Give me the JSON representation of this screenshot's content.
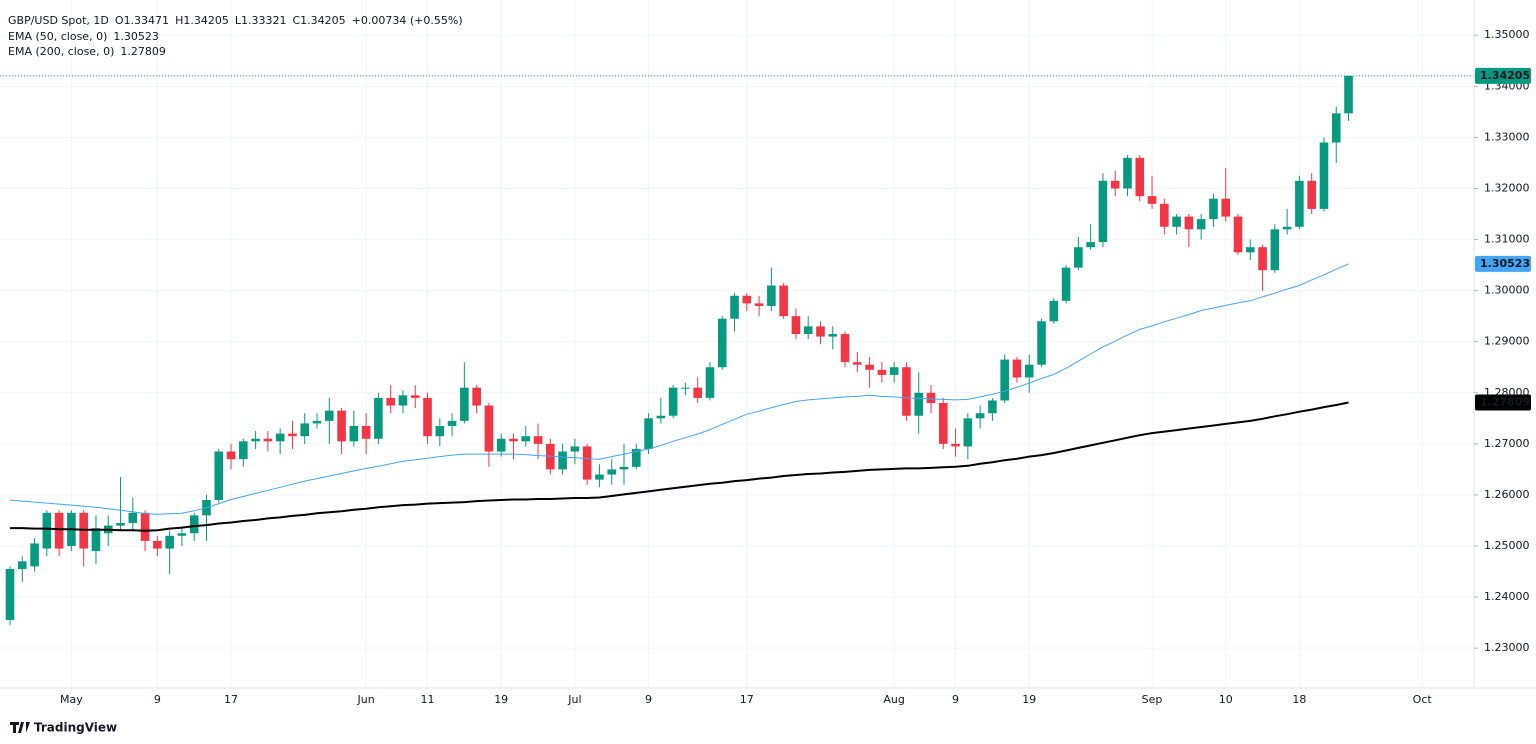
{
  "chart_data": {
    "type": "candlestick",
    "title": "GBP/USD Spot, 1D",
    "ohlc_prefixes": [
      "O",
      "H",
      "L",
      "C"
    ],
    "change_label": "+0.00734 (+0.55%)",
    "brand": "TradingView",
    "up_color": "#089981",
    "down_color": "#f23645",
    "grid": true,
    "categories": [
      null,
      null,
      null,
      null,
      null,
      "May",
      null,
      null,
      null,
      null,
      null,
      null,
      "9",
      null,
      null,
      null,
      null,
      null,
      "17",
      null,
      null,
      null,
      null,
      null,
      null,
      null,
      null,
      null,
      null,
      "Jun",
      null,
      null,
      null,
      null,
      "11",
      null,
      null,
      null,
      null,
      null,
      "19",
      null,
      null,
      null,
      null,
      null,
      "Jul",
      null,
      null,
      null,
      null,
      null,
      "9",
      null,
      null,
      null,
      null,
      null,
      null,
      null,
      "17",
      null,
      null,
      null,
      null,
      null,
      null,
      null,
      null,
      null,
      null,
      null,
      "Aug",
      null,
      null,
      null,
      null,
      "9",
      null,
      null,
      null,
      null,
      null,
      "19",
      null,
      null,
      null,
      null,
      null,
      null,
      null,
      null,
      null,
      "Sep",
      null,
      null,
      null,
      null,
      null,
      "10",
      null,
      null,
      null,
      null,
      null,
      "18",
      null,
      null,
      null,
      null
    ],
    "future_categories": [
      null,
      null,
      null,
      null,
      null,
      "Oct"
    ],
    "open": [
      1.2355,
      1.2455,
      1.246,
      1.2495,
      1.2565,
      1.25,
      1.2565,
      1.249,
      1.2525,
      1.254,
      1.2545,
      1.2565,
      1.251,
      1.2495,
      1.252,
      1.2525,
      1.256,
      1.259,
      1.2685,
      1.267,
      1.2705,
      1.271,
      1.2705,
      1.272,
      1.2715,
      1.274,
      1.2745,
      1.2765,
      1.2705,
      1.2735,
      1.271,
      1.279,
      1.2775,
      1.2795,
      1.279,
      1.2715,
      1.2735,
      1.2745,
      1.281,
      1.2775,
      1.2685,
      1.271,
      1.2705,
      1.2715,
      1.27,
      1.265,
      1.2685,
      1.2695,
      1.263,
      1.264,
      1.265,
      1.2655,
      1.269,
      1.275,
      1.2755,
      1.281,
      1.281,
      1.279,
      1.285,
      1.2945,
      1.299,
      1.2975,
      1.297,
      1.301,
      1.295,
      1.2915,
      1.293,
      1.291,
      1.2915,
      1.286,
      1.2855,
      1.2845,
      1.2835,
      1.285,
      1.2755,
      1.28,
      1.278,
      1.27,
      1.2695,
      1.275,
      1.276,
      1.2785,
      1.2865,
      1.283,
      1.2855,
      1.294,
      1.298,
      1.3045,
      1.3085,
      1.3095,
      1.3215,
      1.32,
      1.326,
      1.3185,
      1.317,
      1.3125,
      1.3145,
      1.312,
      1.314,
      1.318,
      1.3145,
      1.3075,
      1.3085,
      1.304,
      1.312,
      1.3125,
      1.3215,
      1.316,
      1.329,
      1.33471
    ],
    "high": [
      1.246,
      1.248,
      1.2515,
      1.257,
      1.257,
      1.257,
      1.257,
      1.256,
      1.256,
      1.2635,
      1.2595,
      1.257,
      1.252,
      1.253,
      1.2535,
      1.2565,
      1.26,
      1.269,
      1.27,
      1.271,
      1.2725,
      1.2725,
      1.273,
      1.2745,
      1.276,
      1.276,
      1.279,
      1.277,
      1.2765,
      1.276,
      1.28,
      1.2815,
      1.2805,
      1.2815,
      1.28,
      1.275,
      1.276,
      1.286,
      1.2815,
      1.278,
      1.272,
      1.272,
      1.2735,
      1.274,
      1.271,
      1.27,
      1.271,
      1.27,
      1.266,
      1.267,
      1.27,
      1.27,
      1.276,
      1.279,
      1.2815,
      1.282,
      1.283,
      1.286,
      1.295,
      1.2995,
      1.2995,
      1.299,
      1.3045,
      1.3015,
      1.2965,
      1.295,
      1.294,
      1.293,
      1.292,
      1.288,
      1.287,
      1.286,
      1.286,
      1.286,
      1.284,
      1.2815,
      1.279,
      1.273,
      1.276,
      1.2775,
      1.279,
      1.2875,
      1.287,
      1.2875,
      1.2945,
      1.2985,
      1.305,
      1.3105,
      1.313,
      1.323,
      1.3235,
      1.3265,
      1.3265,
      1.3225,
      1.318,
      1.315,
      1.315,
      1.315,
      1.319,
      1.324,
      1.315,
      1.31,
      1.309,
      1.313,
      1.316,
      1.3225,
      1.323,
      1.33,
      1.336,
      1.34205
    ],
    "low": [
      1.2345,
      1.243,
      1.245,
      1.248,
      1.248,
      1.249,
      1.246,
      1.2465,
      1.25,
      1.253,
      1.253,
      1.249,
      1.248,
      1.2445,
      1.25,
      1.251,
      1.251,
      1.2585,
      1.265,
      1.2655,
      1.269,
      1.2685,
      1.268,
      1.269,
      1.27,
      1.273,
      1.27,
      1.268,
      1.2695,
      1.268,
      1.27,
      1.276,
      1.276,
      1.277,
      1.27,
      1.2695,
      1.2715,
      1.274,
      1.276,
      1.2655,
      1.2675,
      1.267,
      1.2695,
      1.267,
      1.264,
      1.264,
      1.266,
      1.262,
      1.2615,
      1.262,
      1.262,
      1.265,
      1.268,
      1.274,
      1.275,
      1.2795,
      1.278,
      1.2785,
      1.2845,
      1.292,
      1.296,
      1.295,
      1.296,
      1.2945,
      1.2905,
      1.2905,
      1.2895,
      1.2885,
      1.285,
      1.284,
      1.281,
      1.282,
      1.282,
      1.2745,
      1.272,
      1.276,
      1.269,
      1.2675,
      1.267,
      1.273,
      1.2745,
      1.278,
      1.282,
      1.28,
      1.285,
      1.2935,
      1.2975,
      1.304,
      1.308,
      1.3085,
      1.3185,
      1.3185,
      1.3175,
      1.316,
      1.311,
      1.311,
      1.3085,
      1.31,
      1.3125,
      1.3135,
      1.307,
      1.306,
      1.3,
      1.3035,
      1.311,
      1.312,
      1.315,
      1.3155,
      1.325,
      1.33321
    ],
    "close": [
      1.2455,
      1.247,
      1.2505,
      1.2565,
      1.2495,
      1.2565,
      1.2495,
      1.2535,
      1.254,
      1.2545,
      1.2565,
      1.251,
      1.2495,
      1.252,
      1.2525,
      1.256,
      1.259,
      1.2685,
      1.267,
      1.2705,
      1.271,
      1.2705,
      1.272,
      1.2715,
      1.274,
      1.2745,
      1.2765,
      1.2705,
      1.2735,
      1.271,
      1.279,
      1.2775,
      1.2795,
      1.279,
      1.2715,
      1.2735,
      1.2745,
      1.281,
      1.2775,
      1.2685,
      1.271,
      1.2705,
      1.2715,
      1.27,
      1.265,
      1.2685,
      1.2695,
      1.263,
      1.264,
      1.265,
      1.2655,
      1.269,
      1.275,
      1.2755,
      1.281,
      1.281,
      1.279,
      1.285,
      1.2945,
      1.299,
      1.2975,
      1.297,
      1.301,
      1.295,
      1.2915,
      1.293,
      1.291,
      1.2915,
      1.286,
      1.2855,
      1.2845,
      1.2835,
      1.285,
      1.2755,
      1.28,
      1.278,
      1.27,
      1.2695,
      1.275,
      1.276,
      1.2785,
      1.2865,
      1.283,
      1.2855,
      1.294,
      1.298,
      1.3045,
      1.3085,
      1.3095,
      1.3215,
      1.32,
      1.326,
      1.3185,
      1.317,
      1.3125,
      1.3145,
      1.312,
      1.314,
      1.318,
      1.3145,
      1.3075,
      1.3085,
      1.304,
      1.312,
      1.3125,
      1.3215,
      1.316,
      1.329,
      1.33471,
      1.34205
    ],
    "series": [
      {
        "name": "EMA (50, close, 0)",
        "color": "#42a5f5",
        "tag_text_color": "#ffffff",
        "values": [
          1.259,
          1.2588,
          1.2586,
          1.2584,
          1.2582,
          1.258,
          1.2578,
          1.2576,
          1.2573,
          1.257,
          1.2567,
          1.2563,
          1.2562,
          1.2563,
          1.2564,
          1.2569,
          1.2575,
          1.2583,
          1.2591,
          1.2597,
          1.2603,
          1.2609,
          1.2615,
          1.2621,
          1.2627,
          1.2632,
          1.2637,
          1.2642,
          1.2647,
          1.2652,
          1.2656,
          1.2661,
          1.2666,
          1.2669,
          1.2672,
          1.2675,
          1.2678,
          1.268,
          1.268,
          1.268,
          1.268,
          1.268,
          1.2679,
          1.2677,
          1.2676,
          1.2674,
          1.2673,
          1.2671,
          1.267,
          1.2675,
          1.268,
          1.2685,
          1.269,
          1.2697,
          1.2705,
          1.2712,
          1.2719,
          1.2728,
          1.2738,
          1.2748,
          1.2758,
          1.2764,
          1.2771,
          1.2777,
          1.2783,
          1.2786,
          1.2788,
          1.279,
          1.2792,
          1.2793,
          1.2795,
          1.2793,
          1.2792,
          1.279,
          1.2789,
          1.2788,
          1.2787,
          1.2786,
          1.2787,
          1.2792,
          1.2797,
          1.2803,
          1.2811,
          1.2819,
          1.2828,
          1.2836,
          1.2848,
          1.2862,
          1.2876,
          1.289,
          1.2901,
          1.2913,
          1.2924,
          1.2931,
          1.2939,
          1.2946,
          1.2953,
          1.2961,
          1.2966,
          1.2971,
          1.2976,
          1.298,
          1.2988,
          1.2995,
          1.3003,
          1.301,
          1.3021,
          1.3031,
          1.3042,
          1.30523
        ]
      },
      {
        "name": "EMA (200, close, 0)",
        "color": "#000000",
        "tag_text_color": "#ffffff",
        "values": [
          1.2535,
          1.2535,
          1.2534,
          1.2534,
          1.2533,
          1.2533,
          1.2532,
          1.2532,
          1.2532,
          1.2531,
          1.2531,
          1.253,
          1.2531,
          1.2534,
          1.2536,
          1.2539,
          1.2541,
          1.2544,
          1.2546,
          1.2549,
          1.2551,
          1.2554,
          1.2556,
          1.2559,
          1.2561,
          1.2564,
          1.2566,
          1.2568,
          1.2571,
          1.2573,
          1.2576,
          1.2578,
          1.258,
          1.2581,
          1.2583,
          1.2584,
          1.2585,
          1.2586,
          1.2588,
          1.2589,
          1.259,
          1.2591,
          1.2591,
          1.2592,
          1.2592,
          1.2593,
          1.2594,
          1.2594,
          1.2595,
          1.2598,
          1.2601,
          1.2604,
          1.2607,
          1.261,
          1.2613,
          1.2616,
          1.2619,
          1.2622,
          1.2624,
          1.2627,
          1.2629,
          1.2632,
          1.2634,
          1.2637,
          1.2639,
          1.2641,
          1.2642,
          1.2644,
          1.2645,
          1.2647,
          1.2649,
          1.265,
          1.2651,
          1.2652,
          1.2652,
          1.2653,
          1.2654,
          1.2655,
          1.2657,
          1.2661,
          1.2664,
          1.2668,
          1.2671,
          1.2675,
          1.2678,
          1.2682,
          1.2687,
          1.2692,
          1.2697,
          1.2702,
          1.2707,
          1.2712,
          1.2717,
          1.2721,
          1.2724,
          1.2727,
          1.273,
          1.2733,
          1.2736,
          1.2739,
          1.2742,
          1.2745,
          1.2749,
          1.2754,
          1.2758,
          1.2763,
          1.2767,
          1.2772,
          1.2776,
          1.27809
        ]
      }
    ],
    "ylim": [
      1.2222,
      1.3569
    ],
    "yticks": [
      {
        "value": 1.35,
        "label": "1.35000"
      },
      {
        "value": 1.34,
        "label": "1.34000"
      },
      {
        "value": 1.33,
        "label": "1.33000"
      },
      {
        "value": 1.32,
        "label": "1.32000"
      },
      {
        "value": 1.31,
        "label": "1.31000"
      },
      {
        "value": 1.3,
        "label": "1.30000"
      },
      {
        "value": 1.29,
        "label": "1.29000"
      },
      {
        "value": 1.28,
        "label": "1.28000"
      },
      {
        "value": 1.27,
        "label": "1.27000"
      },
      {
        "value": 1.26,
        "label": "1.26000"
      },
      {
        "value": 1.25,
        "label": "1.25000"
      },
      {
        "value": 1.24,
        "label": "1.24000"
      },
      {
        "value": 1.23,
        "label": "1.23000"
      }
    ]
  }
}
